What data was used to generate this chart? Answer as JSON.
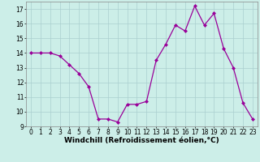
{
  "x": [
    0,
    1,
    2,
    3,
    4,
    5,
    6,
    7,
    8,
    9,
    10,
    11,
    12,
    13,
    14,
    15,
    16,
    17,
    18,
    19,
    20,
    21,
    22,
    23
  ],
  "y": [
    14.0,
    14.0,
    14.0,
    13.8,
    13.2,
    12.6,
    11.7,
    9.5,
    9.5,
    9.3,
    10.5,
    10.5,
    10.7,
    13.5,
    14.6,
    15.9,
    15.5,
    17.2,
    15.9,
    16.7,
    14.3,
    13.0,
    10.6,
    9.5
  ],
  "line_color": "#990099",
  "marker": "D",
  "marker_size": 2.0,
  "linewidth": 0.9,
  "xlabel": "Windchill (Refroidissement éolien,°C)",
  "xlabel_fontsize": 6.5,
  "xlim": [
    -0.5,
    23.5
  ],
  "ylim": [
    9.0,
    17.5
  ],
  "yticks": [
    9,
    10,
    11,
    12,
    13,
    14,
    15,
    16,
    17
  ],
  "xticks": [
    0,
    1,
    2,
    3,
    4,
    5,
    6,
    7,
    8,
    9,
    10,
    11,
    12,
    13,
    14,
    15,
    16,
    17,
    18,
    19,
    20,
    21,
    22,
    23
  ],
  "tick_fontsize": 5.5,
  "background_color": "#cceee8",
  "grid_color": "#aacfcf",
  "grid_linewidth": 0.5,
  "spine_color": "#888888"
}
